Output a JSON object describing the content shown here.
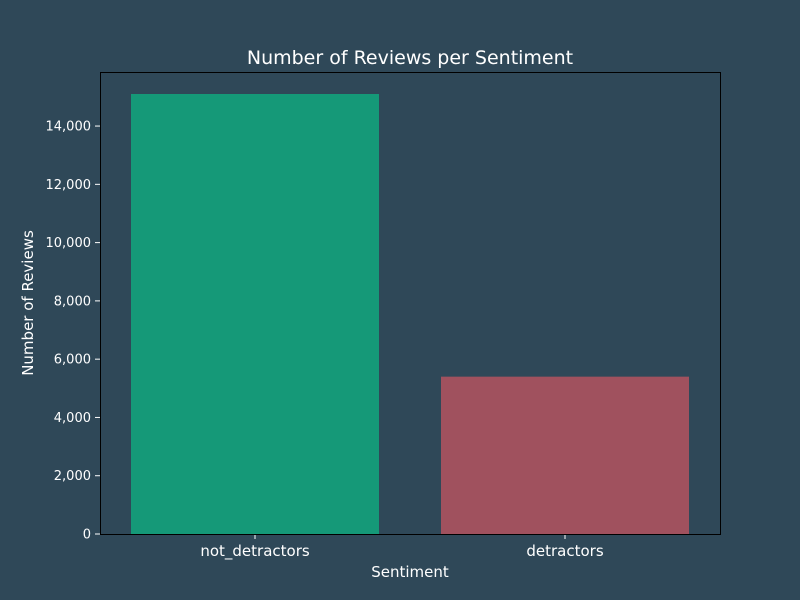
{
  "colors": {
    "background": "#2f4858",
    "text": "#ffffff",
    "frame": "#000000"
  },
  "chart_data": {
    "type": "bar",
    "title": "Number of Reviews per Sentiment",
    "xlabel": "Sentiment",
    "ylabel": "Number of Reviews",
    "categories": [
      "not_detractors",
      "detractors"
    ],
    "values": [
      15100,
      5400
    ],
    "bar_colors": [
      "#159978",
      "#a0515e"
    ],
    "ylim": [
      0,
      15100
    ],
    "yticks": [
      0,
      2000,
      4000,
      6000,
      8000,
      10000,
      12000,
      14000
    ],
    "ytick_labels": [
      "0",
      "2,000",
      "4,000",
      "6,000",
      "8,000",
      "10,000",
      "12,000",
      "14,000"
    ],
    "grid": false,
    "legend": "none"
  }
}
